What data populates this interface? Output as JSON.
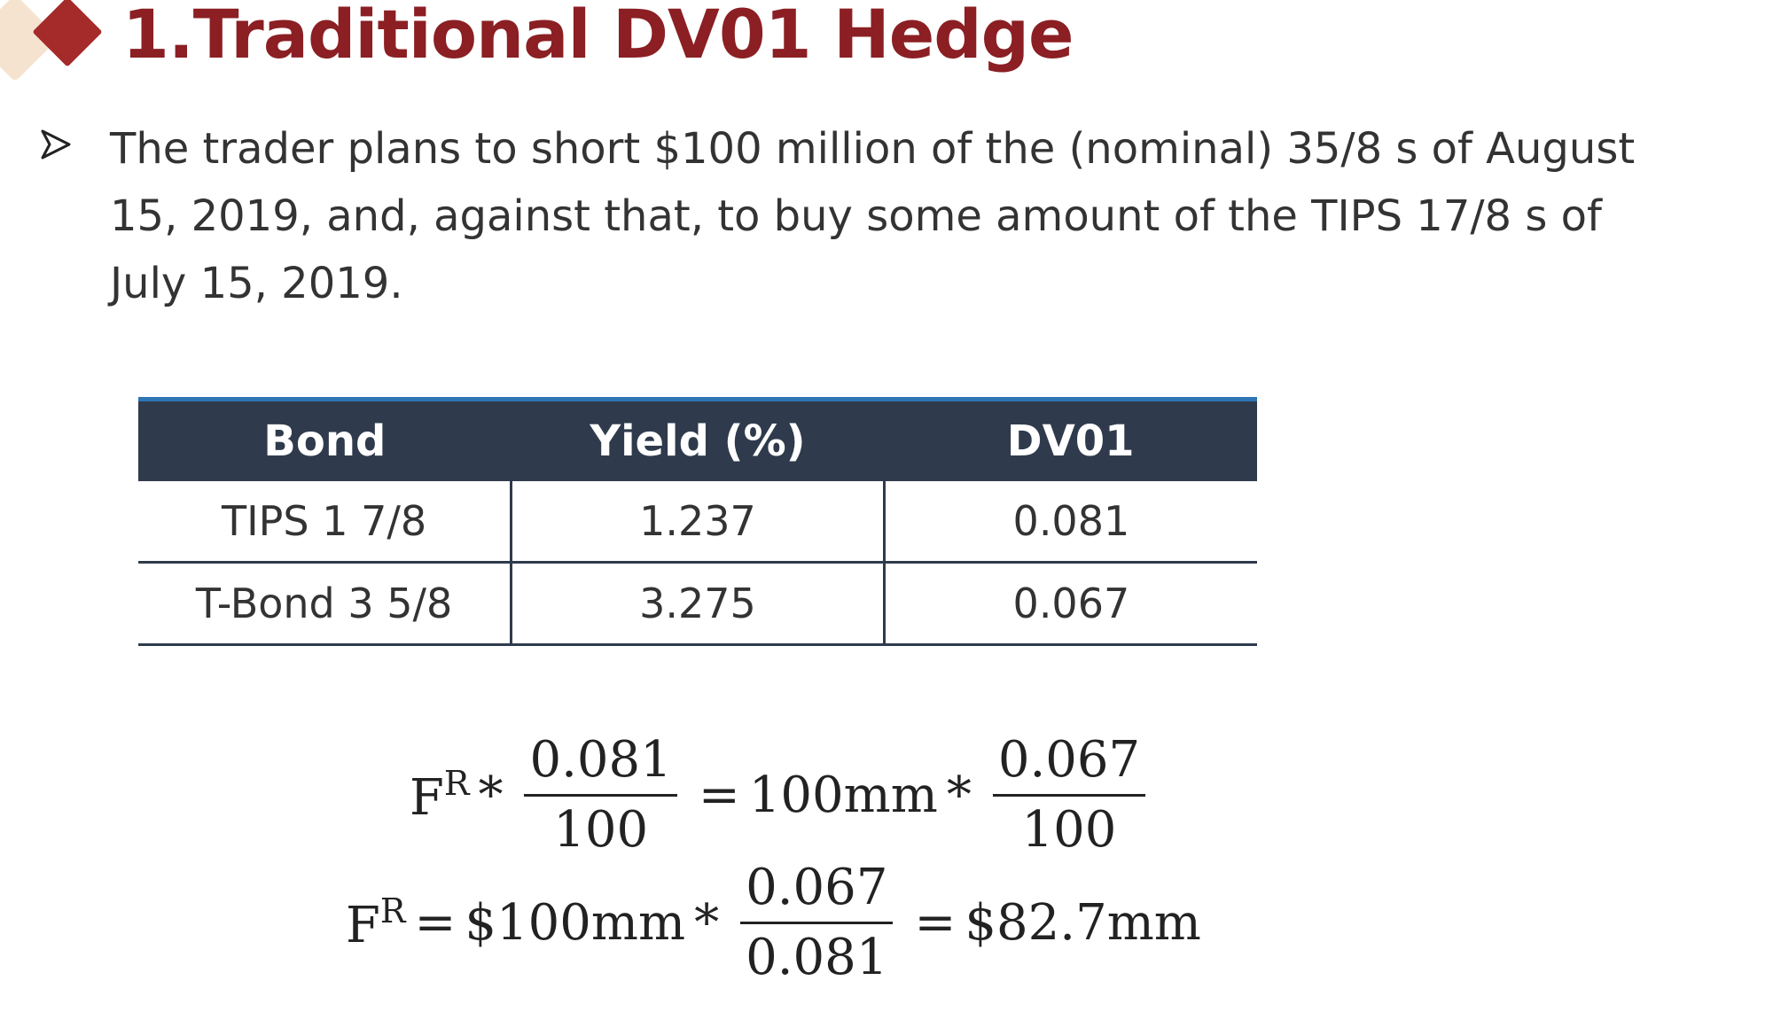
{
  "header": {
    "title": "1.Traditional DV01 Hedge",
    "accent_color": "#8b1f23",
    "diamond_color": "#a52a2a",
    "deco_color": "#f6e3cf"
  },
  "bullet": {
    "icon": "arrowhead-bullet-icon",
    "text": "The trader plans to short $100 million of the (nominal) 35/8 s of August 15, 2019, and, against that, to buy some amount of the TIPS 17/8 s of July 15, 2019."
  },
  "table": {
    "headers": [
      "Bond",
      "Yield (%)",
      "DV01"
    ],
    "rows": [
      [
        "TIPS 1 7/8",
        "1.237",
        "0.081"
      ],
      [
        "T-Bond 3 5/8",
        "3.275",
        "0.067"
      ]
    ],
    "header_bg": "#2f3b4c",
    "header_accent": "#2e75b6"
  },
  "equations": {
    "eq1": {
      "lhs_var": "F",
      "lhs_sup": "R",
      "op1": "*",
      "frac1_num": "0.081",
      "frac1_den": "100",
      "eq": "=",
      "term": "100mm",
      "op2": "*",
      "frac2_num": "0.067",
      "frac2_den": "100"
    },
    "eq2": {
      "lhs_var": "F",
      "lhs_sup": "R",
      "eq1": "=",
      "term": "$100mm",
      "op": "*",
      "frac_num": "0.067",
      "frac_den": "0.081",
      "eq2": "=",
      "result": "$82.7mm"
    }
  }
}
